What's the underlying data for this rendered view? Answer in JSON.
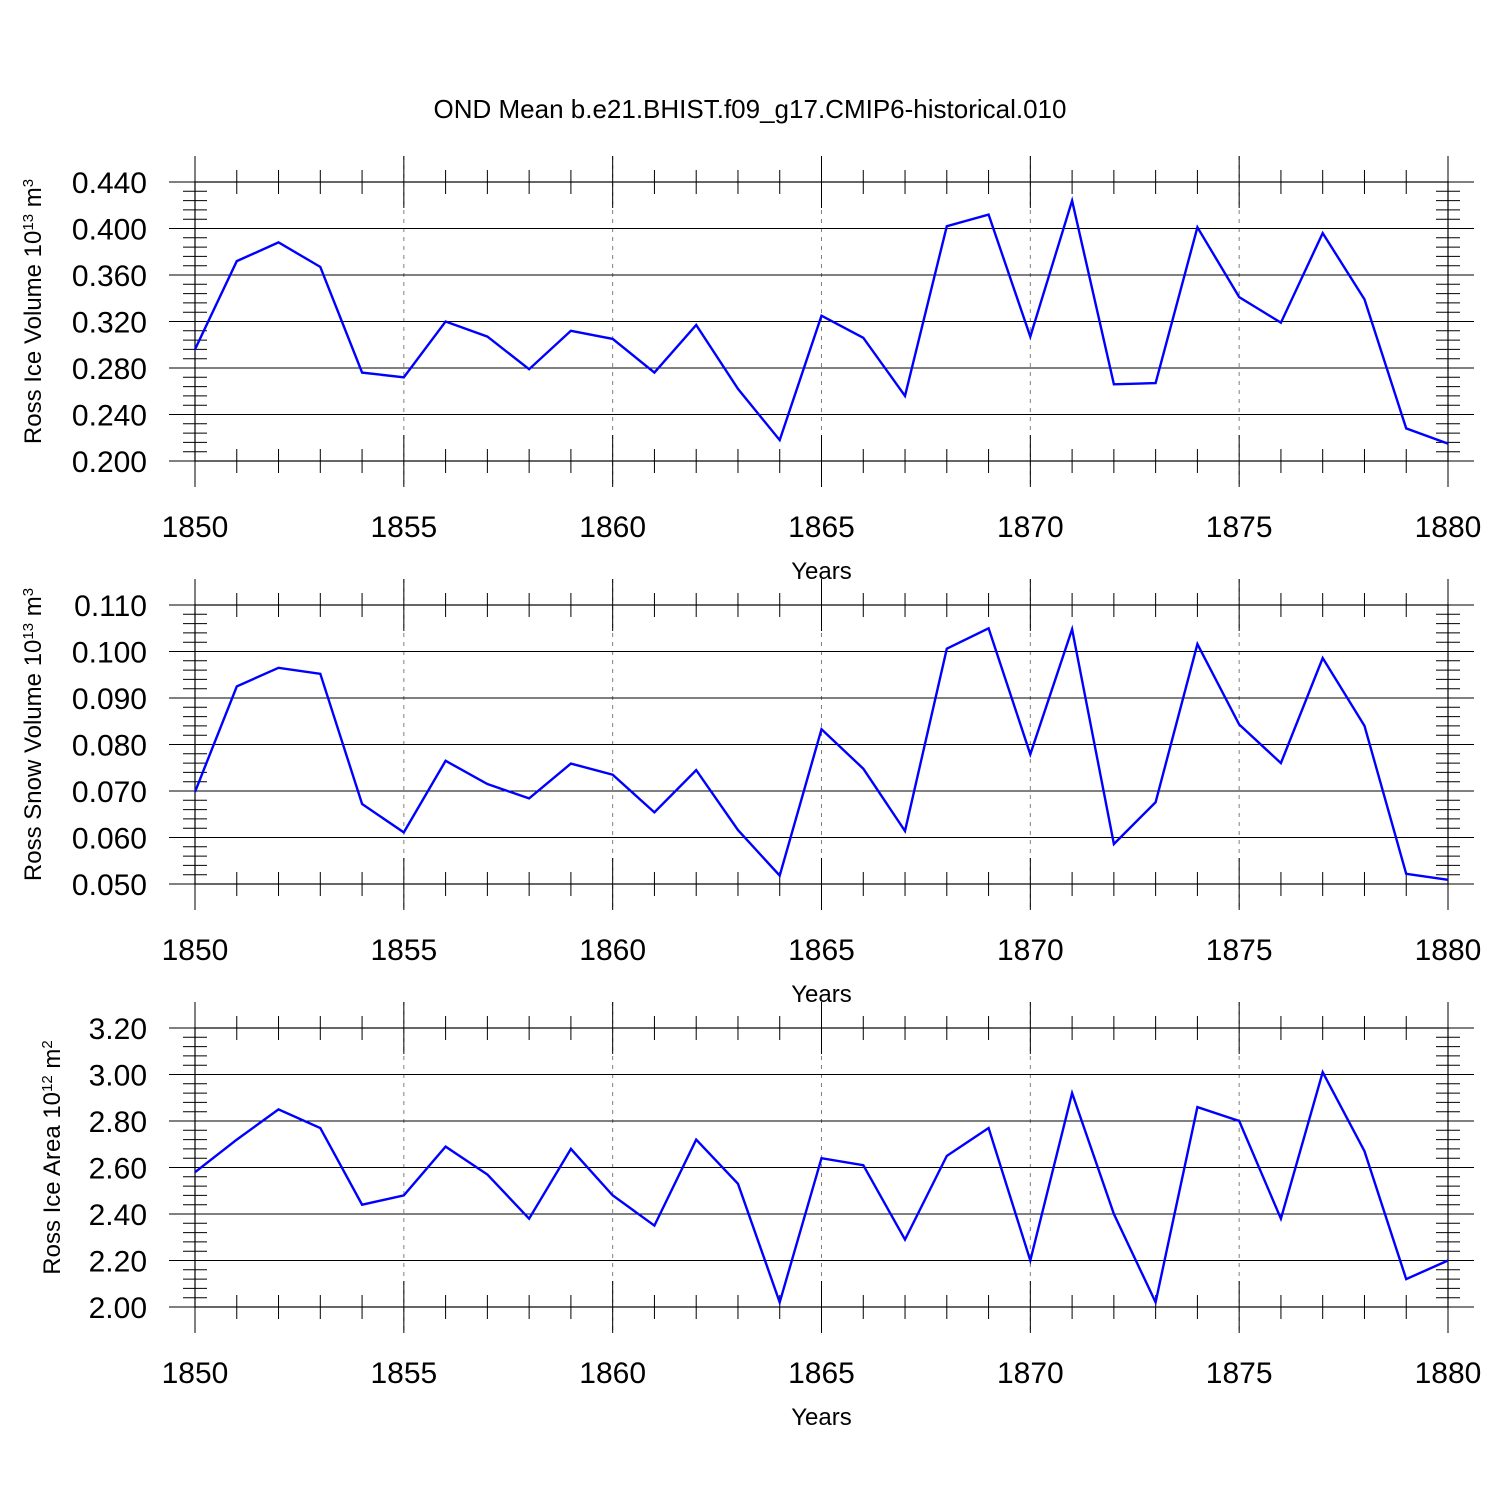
{
  "figure_title": "OND Mean b.e21.BHIST.f09_g17.CMIP6-historical.010",
  "line_color": "#0000ff",
  "chart_data": [
    {
      "type": "line",
      "xlabel": "Years",
      "ylabel": "Ross Ice Volume 10",
      "ylabel_exp": "13",
      "ylabel_unit": " m",
      "ylabel_unit_exp": "3",
      "xlim": [
        1850,
        1880
      ],
      "ylim": [
        0.2,
        0.44
      ],
      "x_ticks": [
        1850,
        1855,
        1860,
        1865,
        1870,
        1875,
        1880
      ],
      "y_ticks": [
        "0.200",
        "0.240",
        "0.280",
        "0.320",
        "0.360",
        "0.400",
        "0.440"
      ],
      "grid": "vertical dashed at major x ticks",
      "x": [
        1850,
        1851,
        1852,
        1853,
        1854,
        1855,
        1856,
        1857,
        1858,
        1859,
        1860,
        1861,
        1862,
        1863,
        1864,
        1865,
        1866,
        1867,
        1868,
        1869,
        1870,
        1871,
        1872,
        1873,
        1874,
        1875,
        1876,
        1877,
        1878,
        1879,
        1880
      ],
      "y": [
        0.296,
        0.372,
        0.388,
        0.367,
        0.276,
        0.272,
        0.32,
        0.307,
        0.279,
        0.312,
        0.305,
        0.276,
        0.317,
        0.262,
        0.218,
        0.325,
        0.306,
        0.256,
        0.402,
        0.412,
        0.307,
        0.424,
        0.266,
        0.267,
        0.401,
        0.341,
        0.319,
        0.396,
        0.339,
        0.228,
        0.215
      ]
    },
    {
      "type": "line",
      "xlabel": "Years",
      "ylabel": "Ross Snow Volume 10",
      "ylabel_exp": "13",
      "ylabel_unit": " m",
      "ylabel_unit_exp": "3",
      "xlim": [
        1850,
        1880
      ],
      "ylim": [
        0.05,
        0.11
      ],
      "x_ticks": [
        1850,
        1855,
        1860,
        1865,
        1870,
        1875,
        1880
      ],
      "y_ticks": [
        "0.050",
        "0.060",
        "0.070",
        "0.080",
        "0.090",
        "0.100",
        "0.110"
      ],
      "grid": "vertical dashed at major x ticks",
      "x": [
        1850,
        1851,
        1852,
        1853,
        1854,
        1855,
        1856,
        1857,
        1858,
        1859,
        1860,
        1861,
        1862,
        1863,
        1864,
        1865,
        1866,
        1867,
        1868,
        1869,
        1870,
        1871,
        1872,
        1873,
        1874,
        1875,
        1876,
        1877,
        1878,
        1879,
        1880
      ],
      "y": [
        0.0698,
        0.0925,
        0.0965,
        0.0952,
        0.0672,
        0.0611,
        0.0765,
        0.0715,
        0.0684,
        0.0759,
        0.0735,
        0.0654,
        0.0745,
        0.0616,
        0.0518,
        0.0833,
        0.0748,
        0.0614,
        0.1006,
        0.105,
        0.0779,
        0.1048,
        0.0586,
        0.0676,
        0.1016,
        0.0843,
        0.076,
        0.0986,
        0.084,
        0.0522,
        0.0509
      ]
    },
    {
      "type": "line",
      "xlabel": "Years",
      "ylabel": "Ross Ice Area 10",
      "ylabel_exp": "12",
      "ylabel_unit": " m",
      "ylabel_unit_exp": "2",
      "xlim": [
        1850,
        1880
      ],
      "ylim": [
        2.0,
        3.2
      ],
      "x_ticks": [
        1850,
        1855,
        1860,
        1865,
        1870,
        1875,
        1880
      ],
      "y_ticks": [
        "2.00",
        "2.20",
        "2.40",
        "2.60",
        "2.80",
        "3.00",
        "3.20"
      ],
      "grid": "vertical dashed at major x ticks",
      "x": [
        1850,
        1851,
        1852,
        1853,
        1854,
        1855,
        1856,
        1857,
        1858,
        1859,
        1860,
        1861,
        1862,
        1863,
        1864,
        1865,
        1866,
        1867,
        1868,
        1869,
        1870,
        1871,
        1872,
        1873,
        1874,
        1875,
        1876,
        1877,
        1878,
        1879,
        1880
      ],
      "y": [
        2.58,
        2.72,
        2.85,
        2.77,
        2.44,
        2.48,
        2.69,
        2.57,
        2.38,
        2.68,
        2.48,
        2.35,
        2.72,
        2.53,
        2.02,
        2.64,
        2.61,
        2.29,
        2.65,
        2.77,
        2.2,
        2.92,
        2.4,
        2.02,
        2.86,
        2.8,
        2.38,
        3.01,
        2.67,
        2.12,
        2.2
      ]
    }
  ]
}
